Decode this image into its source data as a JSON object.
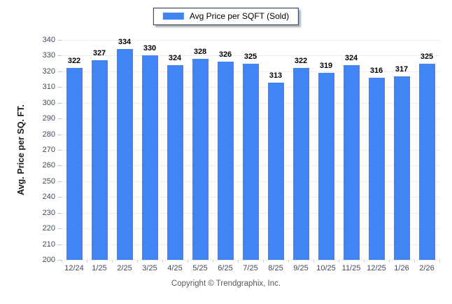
{
  "legend": {
    "label": "Avg Price per SQFT (Sold)"
  },
  "footer": {
    "copyright": "Copyright © Trendgraphix, Inc."
  },
  "colors": {
    "bar": "#4184F3",
    "legend_border": "#17375E",
    "gridline": "#ECECEC",
    "tick_text": "#3E4A5C",
    "value_label": "#000000",
    "footer_text": "#58595B"
  },
  "chart_data": {
    "type": "bar",
    "title": "",
    "categories": [
      "12/24",
      "1/25",
      "2/25",
      "3/25",
      "4/25",
      "5/25",
      "6/25",
      "7/25",
      "8/25",
      "9/25",
      "10/25",
      "11/25",
      "12/25",
      "1/26",
      "2/26"
    ],
    "series": [
      {
        "name": "Avg Price per SQFT (Sold)",
        "values": [
          322,
          327,
          334,
          330,
          324,
          328,
          326,
          325,
          313,
          322,
          319,
          324,
          316,
          317,
          325
        ]
      }
    ],
    "xlabel": "",
    "ylabel": "Avg. Price per SQ. FT.",
    "ylim": [
      200,
      340
    ],
    "ytick_step": 10,
    "grid": "horizontal",
    "legend_position": "top-center"
  }
}
